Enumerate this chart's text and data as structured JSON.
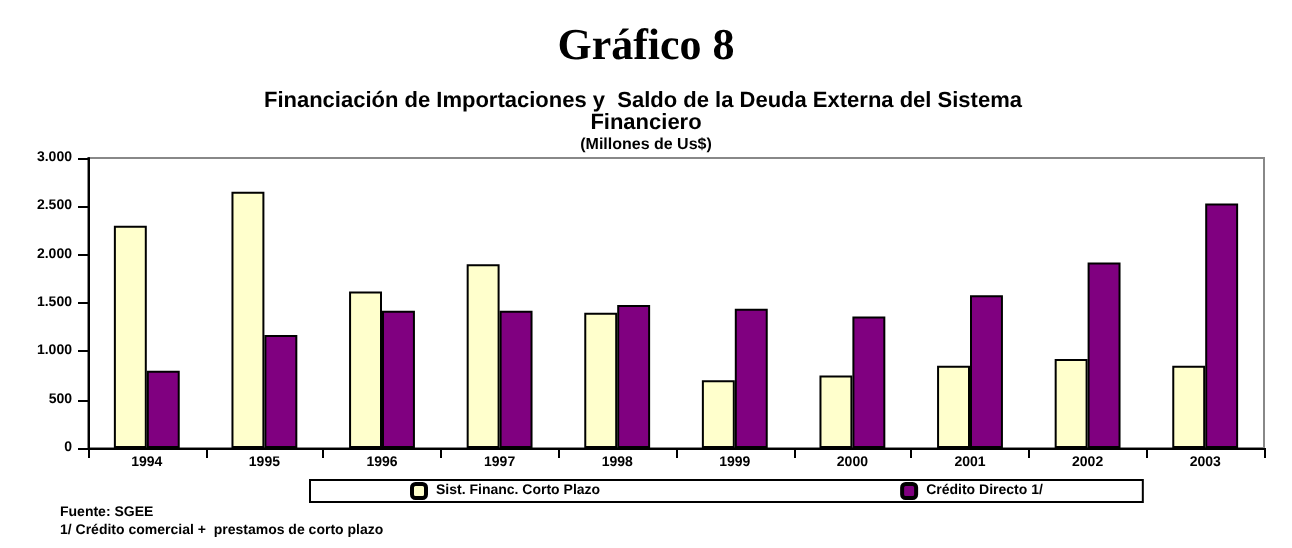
{
  "chart_data": {
    "type": "bar",
    "title": "Gráfico 8",
    "subtitle": "Financiación de Importaciones y  Saldo de la Deuda Externa del Sistema Financiero",
    "ylabel": "(Millones de Us$)",
    "categories": [
      "1994",
      "1995",
      "1996",
      "1997",
      "1998",
      "1999",
      "2000",
      "2001",
      "2002",
      "2003"
    ],
    "series": [
      {
        "name": "Sist. Financ. Corto Plazo",
        "color": "#ffffcc",
        "values": [
          2300,
          2650,
          1620,
          1900,
          1400,
          700,
          750,
          850,
          920,
          850
        ]
      },
      {
        "name": "Crédito Directo 1/",
        "color": "#800080",
        "values": [
          800,
          1170,
          1420,
          1420,
          1480,
          1440,
          1360,
          1580,
          1920,
          2530
        ]
      }
    ],
    "ylim": [
      0,
      3000
    ],
    "yticks": [
      {
        "value": 0,
        "label": "0"
      },
      {
        "value": 500,
        "label": "500"
      },
      {
        "value": 1000,
        "label": "1.000"
      },
      {
        "value": 1500,
        "label": "1.500"
      },
      {
        "value": 2000,
        "label": "2.000"
      },
      {
        "value": 2500,
        "label": "2.500"
      },
      {
        "value": 3000,
        "label": "3.000"
      }
    ],
    "grid": false,
    "legend": "bottom",
    "annotations": [
      "Fuente: SGEE",
      "1/ Crédito comercial +  prestamos de corto plazo"
    ]
  }
}
